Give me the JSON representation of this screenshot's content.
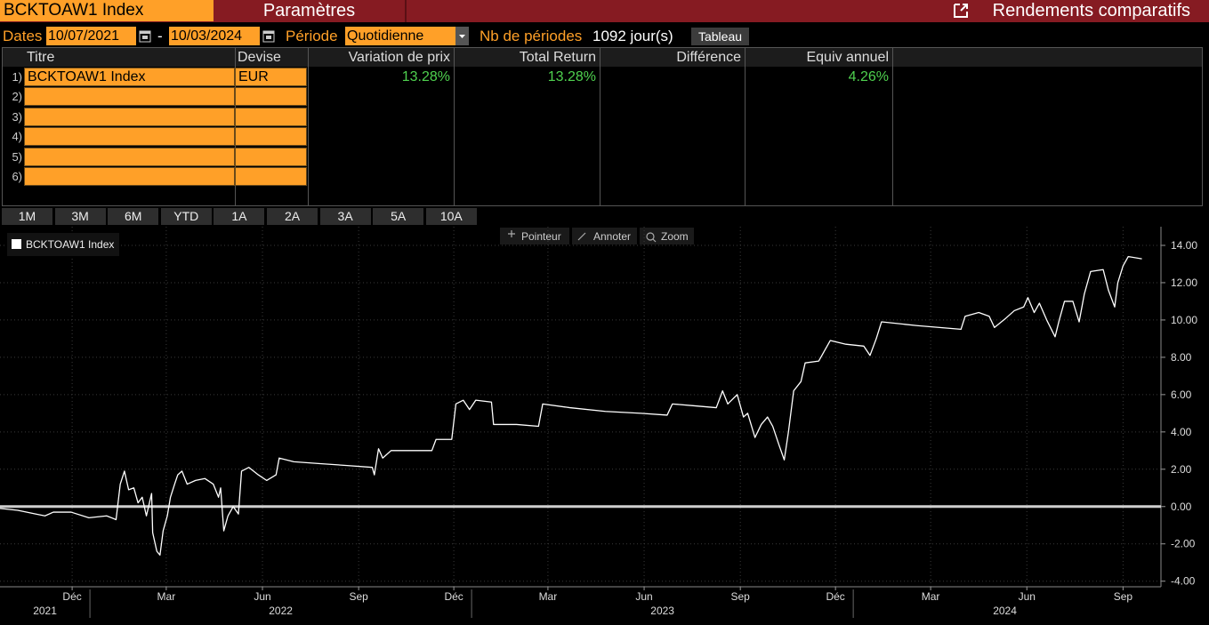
{
  "header": {
    "security": "BCKTOAW1 Index",
    "tab": "Paramètres",
    "function_title": "Rendements comparatifs"
  },
  "controls": {
    "dates_label": "Dates",
    "start": "10/07/2021",
    "separator": "-",
    "end": "10/03/2024",
    "period_label": "Période",
    "period": "Quotidienne",
    "count_label": "Nb de périodes",
    "count": "1092 jour(s)",
    "table_button": "Tableau"
  },
  "table": {
    "columns": [
      "Titre",
      "Devise",
      "Variation de prix",
      "Total Return",
      "Différence",
      "Equiv annuel"
    ],
    "rows": [
      {
        "number": "1)",
        "cells": [
          "BCKTOAW1 Index",
          "EUR",
          "13.28%",
          "13.28%",
          null,
          "4.26%"
        ]
      },
      {
        "number": "2)"
      },
      {
        "number": "3)"
      },
      {
        "number": "4)"
      },
      {
        "number": "5)"
      },
      {
        "number": "6)"
      }
    ]
  },
  "range_buttons": [
    "1M",
    "3M",
    "6M",
    "YTD",
    "1A",
    "2A",
    "3A",
    "5A",
    "10A"
  ],
  "chart_tools": [
    "Pointeur",
    "Annoter",
    "Zoom"
  ],
  "chart_data": {
    "type": "line",
    "legend": "top-left",
    "grid": true,
    "x": [
      "2021-10-07",
      "2021-10-24",
      "2021-11-10",
      "2021-11-19",
      "2021-11-27",
      "2021-12-14",
      "2021-12-31",
      "2022-01-17",
      "2022-01-26",
      "2022-01-30",
      "2022-02-03",
      "2022-02-07",
      "2022-02-12",
      "2022-02-16",
      "2022-02-20",
      "2022-02-24",
      "2022-03-01",
      "2022-03-02",
      "2022-03-06",
      "2022-03-09",
      "2022-03-12",
      "2022-03-16",
      "2022-03-19",
      "2022-03-23",
      "2022-03-26",
      "2022-03-30",
      "2022-04-04",
      "2022-04-12",
      "2022-04-21",
      "2022-04-29",
      "2022-05-04",
      "2022-05-06",
      "2022-05-09",
      "2022-05-13",
      "2022-05-18",
      "2022-05-23",
      "2022-05-26",
      "2022-06-02",
      "2022-06-11",
      "2022-06-19",
      "2022-06-28",
      "2022-07-01",
      "2022-07-15",
      "2022-08-09",
      "2022-09-04",
      "2022-09-28",
      "2022-09-30",
      "2022-10-04",
      "2022-10-08",
      "2022-10-16",
      "2022-11-02",
      "2022-11-24",
      "2022-11-28",
      "2022-12-13",
      "2022-12-17",
      "2022-12-24",
      "2022-12-30",
      "2023-01-05",
      "2023-01-20",
      "2023-01-22",
      "2023-02-13",
      "2023-03-06",
      "2023-03-10",
      "2023-04-05",
      "2023-05-09",
      "2023-06-12",
      "2023-07-07",
      "2023-07-12",
      "2023-08-02",
      "2023-08-23",
      "2023-08-29",
      "2023-09-03",
      "2023-09-12",
      "2023-09-18",
      "2023-09-22",
      "2023-09-29",
      "2023-10-05",
      "2023-10-11",
      "2023-10-16",
      "2023-10-22",
      "2023-10-27",
      "2023-10-31",
      "2023-11-05",
      "2023-11-12",
      "2023-11-16",
      "2023-11-29",
      "2023-12-04",
      "2023-12-10",
      "2023-12-25",
      "2024-01-11",
      "2024-01-17",
      "2024-01-23",
      "2024-01-28",
      "2024-03-02",
      "2024-04-13",
      "2024-04-17",
      "2024-04-30",
      "2024-05-10",
      "2024-05-15",
      "2024-05-26",
      "2024-06-03",
      "2024-06-12",
      "2024-06-16",
      "2024-06-22",
      "2024-06-27",
      "2024-07-04",
      "2024-07-12",
      "2024-07-16",
      "2024-07-21",
      "2024-07-29",
      "2024-08-04",
      "2024-08-09",
      "2024-08-15",
      "2024-08-27",
      "2024-09-01",
      "2024-09-07",
      "2024-09-10",
      "2024-09-15",
      "2024-09-20",
      "2024-10-03"
    ],
    "series": [
      {
        "name": "BCKTOAW1 Index",
        "color": "#ffffff",
        "values": [
          -0.1,
          -0.2,
          -0.4,
          -0.5,
          -0.3,
          -0.3,
          -0.6,
          -0.5,
          -0.7,
          1.2,
          1.9,
          0.9,
          1.0,
          0.2,
          0.5,
          -0.5,
          0.7,
          -1.4,
          -2.4,
          -2.6,
          -1.3,
          -0.5,
          0.5,
          1.2,
          1.7,
          1.9,
          1.2,
          1.4,
          1.5,
          1.2,
          0.5,
          1.0,
          -1.3,
          -0.5,
          0.0,
          -0.4,
          1.9,
          2.1,
          1.7,
          1.4,
          1.7,
          2.6,
          2.4,
          2.3,
          2.2,
          2.1,
          1.7,
          3.1,
          2.6,
          3.0,
          3.0,
          3.0,
          3.6,
          3.6,
          5.5,
          5.7,
          5.2,
          5.7,
          5.6,
          4.4,
          4.4,
          4.3,
          5.5,
          5.3,
          5.1,
          5.0,
          4.9,
          5.5,
          5.4,
          5.3,
          6.2,
          5.5,
          6.0,
          4.8,
          5.0,
          3.7,
          4.4,
          4.8,
          4.3,
          3.3,
          2.5,
          4.0,
          6.2,
          6.7,
          7.7,
          7.8,
          8.3,
          8.9,
          8.7,
          8.6,
          8.1,
          9.0,
          9.9,
          9.7,
          9.5,
          10.2,
          10.4,
          10.2,
          9.6,
          10.1,
          10.5,
          10.7,
          11.2,
          10.4,
          10.9,
          10.0,
          9.1,
          10.0,
          11.0,
          11.0,
          9.9,
          11.4,
          12.6,
          12.7,
          11.6,
          10.7,
          12.0,
          12.9,
          13.4,
          13.28
        ]
      }
    ],
    "xlim": [
      "2021-10-07",
      "2024-10-17"
    ],
    "xticks": [
      {
        "value": "2021-12-15",
        "label": "Déc"
      },
      {
        "value": "2022-03-15",
        "label": "Mar"
      },
      {
        "value": "2022-06-15",
        "label": "Jun"
      },
      {
        "value": "2022-09-15",
        "label": "Sep"
      },
      {
        "value": "2022-12-15",
        "label": "Déc"
      },
      {
        "value": "2023-03-15",
        "label": "Mar"
      },
      {
        "value": "2023-06-15",
        "label": "Jun"
      },
      {
        "value": "2023-09-15",
        "label": "Sep"
      },
      {
        "value": "2023-12-15",
        "label": "Déc"
      },
      {
        "value": "2024-03-15",
        "label": "Mar"
      },
      {
        "value": "2024-06-15",
        "label": "Jun"
      },
      {
        "value": "2024-09-15",
        "label": "Sep"
      }
    ],
    "year_ticks": [
      {
        "value": "2021-01-01",
        "label": "2021"
      },
      {
        "value": "2022-01-01",
        "label": "2022"
      },
      {
        "value": "2023-01-01",
        "label": "2023"
      },
      {
        "value": "2024-01-01",
        "label": "2024"
      }
    ],
    "ylim": [
      -4.3,
      15
    ],
    "yticks": [
      {
        "value": -4,
        "label": "-4.00"
      },
      {
        "value": -2,
        "label": "-2.00"
      },
      {
        "value": 0,
        "label": "0.00"
      },
      {
        "value": 2,
        "label": "2.00"
      },
      {
        "value": 4,
        "label": "4.00"
      },
      {
        "value": 6,
        "label": "6.00"
      },
      {
        "value": 8,
        "label": "8.00"
      },
      {
        "value": 10,
        "label": "10.00"
      },
      {
        "value": 12,
        "label": "12.00"
      },
      {
        "value": 14,
        "label": "14.00"
      }
    ]
  }
}
